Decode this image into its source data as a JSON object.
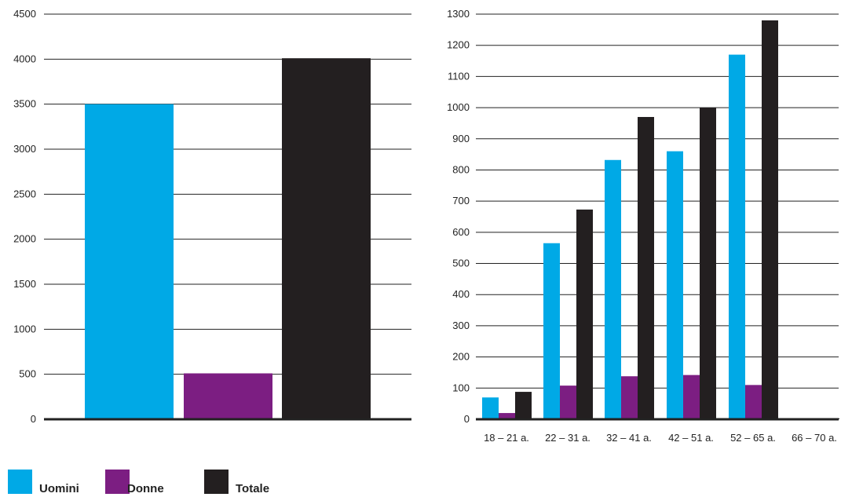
{
  "colors": {
    "uomini": "#00a9e6",
    "donne": "#7c1e82",
    "totale": "#231f20"
  },
  "legend": [
    {
      "label": "Uomini",
      "color": "#00a9e6"
    },
    {
      "label": "Donne",
      "color": "#7c1e82"
    },
    {
      "label": "Totale",
      "color": "#231f20"
    }
  ],
  "chart_data": [
    {
      "type": "bar",
      "categories": [
        ""
      ],
      "series": [
        {
          "name": "Uomini",
          "values": [
            3500
          ]
        },
        {
          "name": "Donne",
          "values": [
            510
          ]
        },
        {
          "name": "Totale",
          "values": [
            4010
          ]
        }
      ],
      "ylim": [
        0,
        4500
      ],
      "yticks": [
        "0",
        "500",
        "1000",
        "1500",
        "2000",
        "2500",
        "3000",
        "3500",
        "4000",
        "4500"
      ],
      "grid": true
    },
    {
      "type": "bar",
      "categories": [
        "18 – 21 a.",
        "22 – 31 a.",
        "32 – 41 a.",
        "42 – 51 a.",
        "52 – 65 a.",
        "66 – 70 a."
      ],
      "series": [
        {
          "name": "Uomini",
          "values": [
            70,
            565,
            832,
            860,
            1170,
            2
          ]
        },
        {
          "name": "Donne",
          "values": [
            20,
            108,
            138,
            142,
            110,
            1
          ]
        },
        {
          "name": "Totale",
          "values": [
            88,
            673,
            970,
            1000,
            1280,
            3
          ]
        }
      ],
      "ylim": [
        0,
        1300
      ],
      "yticks": [
        "0",
        "100",
        "200",
        "300",
        "400",
        "500",
        "600",
        "700",
        "800",
        "900",
        "1000",
        "1100",
        "1200",
        "1300"
      ],
      "grid": true
    }
  ]
}
